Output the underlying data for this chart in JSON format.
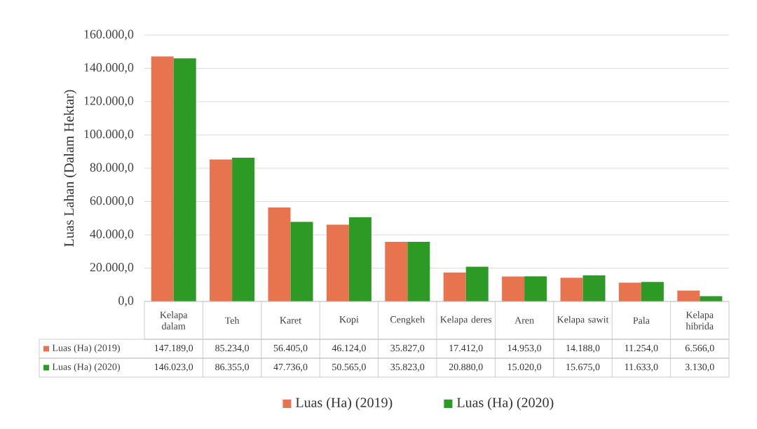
{
  "chart_data": {
    "type": "bar",
    "ylabel": "Luas Lahan (Dalam Hektar)",
    "categories": [
      "Kelapa dalam",
      "Teh",
      "Karet",
      "Kopi",
      "Cengkeh",
      "Kelapa deres",
      "Aren",
      "Kelapa sawit",
      "Pala",
      "Kelapa hibrida"
    ],
    "series": [
      {
        "name": "Luas (Ha) (2019)",
        "color": "#e8744f",
        "values": [
          147189.0,
          85234.0,
          56405.0,
          46124.0,
          35827.0,
          17412.0,
          14953.0,
          14188.0,
          11254.0,
          6566.0
        ],
        "value_labels": [
          "147.189,0",
          "85.234,0",
          "56.405,0",
          "46.124,0",
          "35.827,0",
          "17.412,0",
          "14.953,0",
          "14.188,0",
          "11.254,0",
          "6.566,0"
        ]
      },
      {
        "name": "Luas (Ha) (2020)",
        "color": "#2e9a26",
        "values": [
          146023.0,
          86355.0,
          47736.0,
          50565.0,
          35823.0,
          20880.0,
          15020.0,
          15675.0,
          11633.0,
          3130.0
        ],
        "value_labels": [
          "146.023,0",
          "86.355,0",
          "47.736,0",
          "50.565,0",
          "35.823,0",
          "20.880,0",
          "15.020,0",
          "15.675,0",
          "11.633,0",
          "3.130,0"
        ]
      }
    ],
    "ylim": [
      0,
      160000
    ],
    "yticks": [
      {
        "value": 0,
        "label": "0,0"
      },
      {
        "value": 20000,
        "label": "20.000,0"
      },
      {
        "value": 40000,
        "label": "40.000,0"
      },
      {
        "value": 60000,
        "label": "60.000,0"
      },
      {
        "value": 80000,
        "label": "80.000,0"
      },
      {
        "value": 100000,
        "label": "100.000,0"
      },
      {
        "value": 120000,
        "label": "120.000,0"
      },
      {
        "value": 140000,
        "label": "140.000,0"
      },
      {
        "value": 160000,
        "label": "160.000,0"
      }
    ],
    "grid": "y",
    "legend": "bottom"
  }
}
